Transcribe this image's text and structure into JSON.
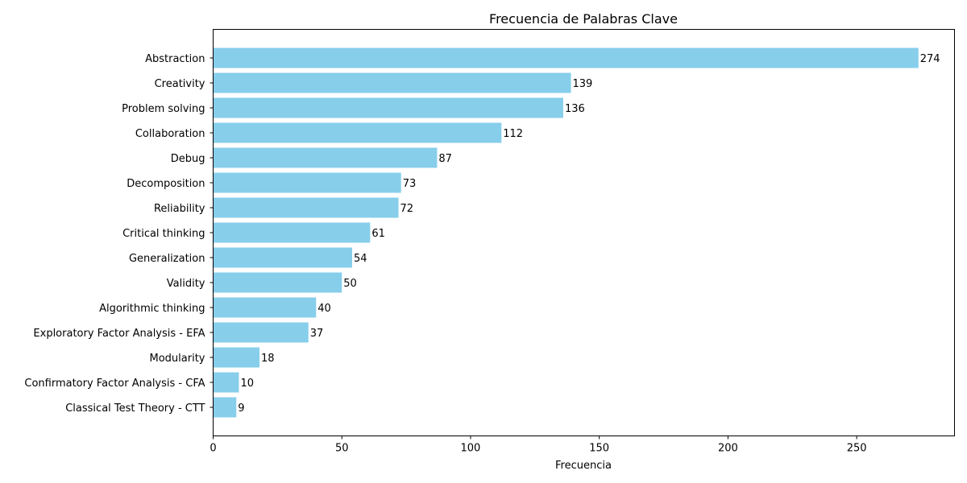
{
  "chart_data": {
    "type": "bar",
    "orientation": "horizontal",
    "title": "Frecuencia de Palabras Clave",
    "xlabel": "Frecuencia",
    "ylabel": "",
    "xlim": [
      0,
      288
    ],
    "xticks": [
      0,
      50,
      100,
      150,
      200,
      250
    ],
    "categories": [
      "Abstraction",
      "Creativity",
      "Problem solving",
      "Collaboration",
      "Debug",
      "Decomposition",
      "Reliability",
      "Critical thinking",
      "Generalization",
      "Validity",
      "Algorithmic thinking",
      "Exploratory Factor Analysis - EFA",
      "Modularity",
      "Confirmatory Factor Analysis - CFA",
      "Classical Test Theory - CTT"
    ],
    "values": [
      274,
      139,
      136,
      112,
      87,
      73,
      72,
      61,
      54,
      50,
      40,
      37,
      18,
      10,
      9
    ],
    "bar_color": "#87ceeb",
    "grid": false,
    "legend": "none"
  }
}
